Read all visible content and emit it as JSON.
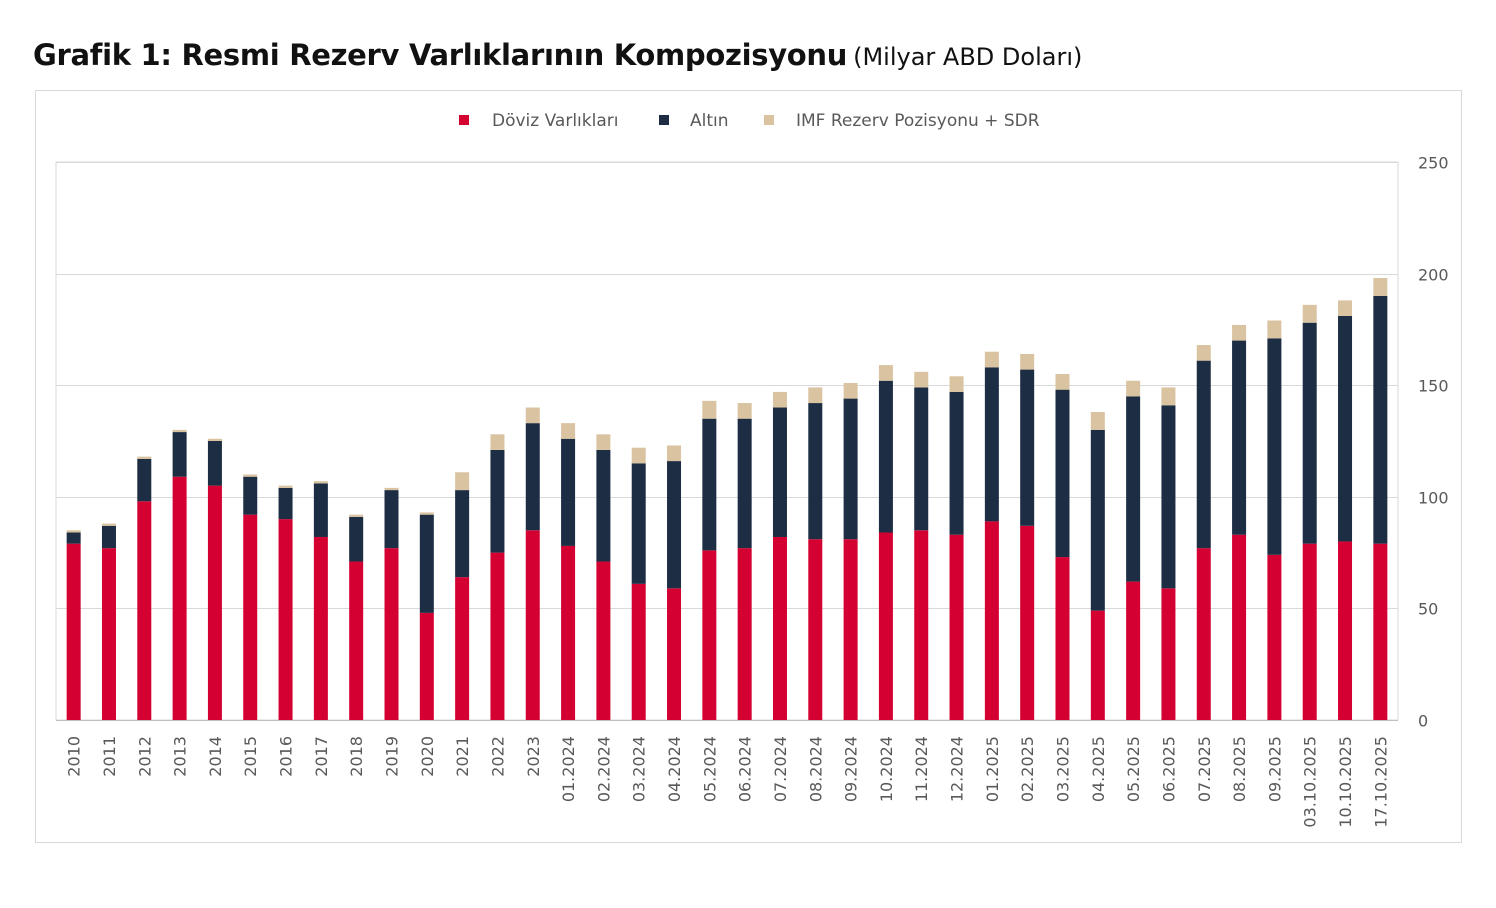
{
  "title": {
    "main": "Grafik 1: Resmi Rezerv Varlıklarının Kompozisyonu",
    "sub": "(Milyar ABD Doları)"
  },
  "chart_data": {
    "type": "bar",
    "stacked": true,
    "title": "Grafik 1: Resmi Rezerv Varlıklarının Kompozisyonu",
    "subtitle": "(Milyar ABD Doları)",
    "xlabel": "",
    "ylabel": "",
    "ylim": [
      0,
      250
    ],
    "yticks": [
      0,
      50,
      100,
      150,
      200,
      250
    ],
    "y_axis_side": "right",
    "grid": true,
    "legend_position": "top-center",
    "categories": [
      "2010",
      "2011",
      "2012",
      "2013",
      "2014",
      "2015",
      "2016",
      "2017",
      "2018",
      "2019",
      "2020",
      "2021",
      "2022",
      "2023",
      "01.2024",
      "02.2024",
      "03.2024",
      "04.2024",
      "05.2024",
      "06.2024",
      "07.2024",
      "08.2024",
      "09.2024",
      "10.2024",
      "11.2024",
      "12.2024",
      "01.2025",
      "02.2025",
      "03.2025",
      "04.2025",
      "05.2025",
      "06.2025",
      "07.2025",
      "08.2025",
      "09.2025",
      "03.10.2025",
      "10.10.2025",
      "17.10.2025"
    ],
    "series": [
      {
        "name": "Döviz Varlıkları",
        "color": "#d50032",
        "values": [
          79,
          77,
          98,
          109,
          105,
          92,
          90,
          82,
          71,
          77,
          48,
          64,
          75,
          85,
          78,
          71,
          61,
          59,
          76,
          77,
          82,
          81,
          81,
          84,
          85,
          83,
          89,
          87,
          73,
          49,
          62,
          59,
          77,
          83,
          74,
          79,
          80,
          79
        ]
      },
      {
        "name": "Altın",
        "color": "#1d2d44",
        "values": [
          5,
          10,
          19,
          20,
          20,
          17,
          14,
          24,
          20,
          26,
          44,
          39,
          46,
          48,
          48,
          50,
          54,
          57,
          59,
          58,
          58,
          61,
          63,
          68,
          64,
          64,
          69,
          70,
          75,
          81,
          83,
          82,
          84,
          87,
          97,
          99,
          101,
          111
        ]
      },
      {
        "name": "IMF Rezerv Pozisyonu + SDR",
        "color": "#d9c3a0",
        "values": [
          1,
          1,
          1,
          1,
          1,
          1,
          1,
          1,
          1,
          1,
          1,
          8,
          7,
          7,
          7,
          7,
          7,
          7,
          8,
          7,
          7,
          7,
          7,
          7,
          7,
          7,
          7,
          7,
          7,
          8,
          7,
          8,
          7,
          7,
          8,
          8,
          7,
          8
        ]
      }
    ]
  }
}
